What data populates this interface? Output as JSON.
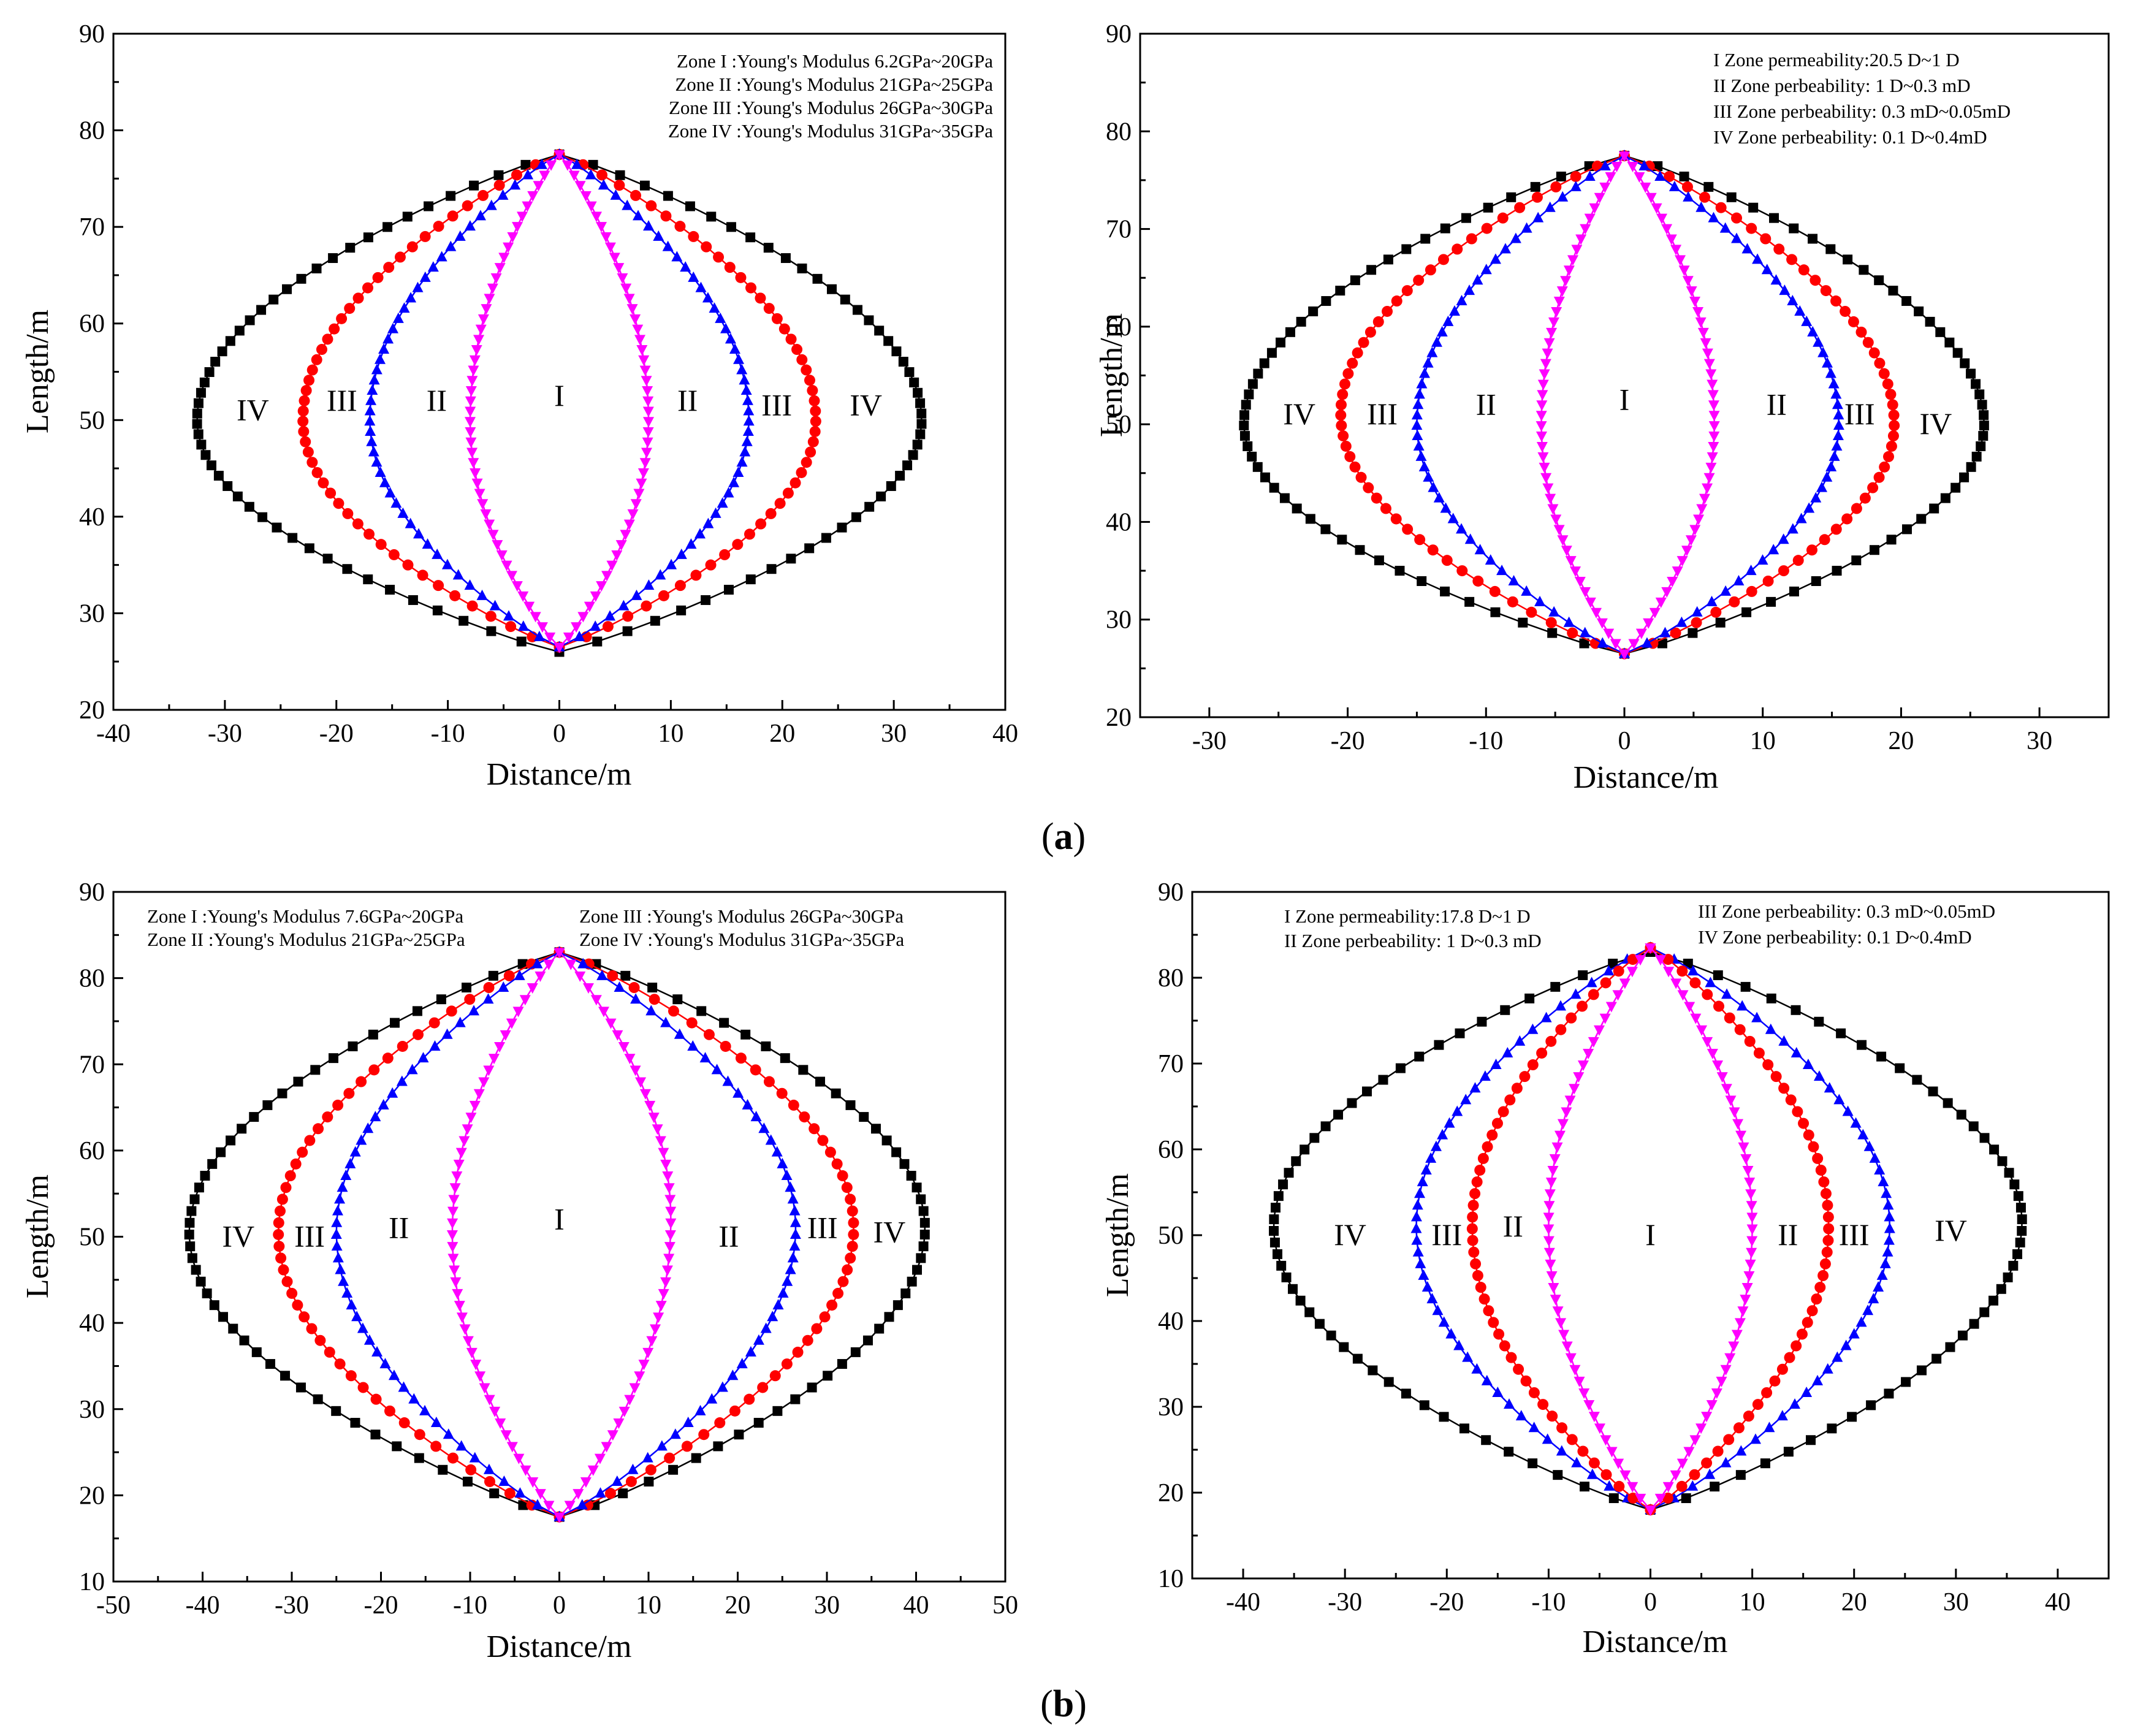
{
  "figure": {
    "captions": [
      {
        "open": "(",
        "letter": "a",
        "close": ")"
      },
      {
        "open": "(",
        "letter": "b",
        "close": ")"
      }
    ]
  },
  "chart_data": [
    {
      "type": "line",
      "xlabel": "Distance/m",
      "ylabel": "Length/m",
      "xlim": [
        -40,
        40
      ],
      "ylim": [
        20,
        90
      ],
      "xticks": [
        -40,
        -30,
        -20,
        -10,
        0,
        10,
        20,
        30,
        40
      ],
      "yticks": [
        20,
        30,
        40,
        50,
        60,
        70,
        80,
        90
      ],
      "annotations": [
        "Zone I :Young's Modulus 6.2GPa~20GPa",
        "Zone II :Young's Modulus 21GPa~25GPa",
        "Zone III :Young's Modulus 26GPa~30GPa",
        "Zone IV :Young's Modulus 31GPa~35GPa"
      ],
      "zone_labels": [
        {
          "text": "IV",
          "x": -27.5,
          "y": 51
        },
        {
          "text": "III",
          "x": -19.5,
          "y": 52
        },
        {
          "text": "II",
          "x": -11,
          "y": 52
        },
        {
          "text": "I",
          "x": 0,
          "y": 52.5
        },
        {
          "text": "II",
          "x": 11.5,
          "y": 52
        },
        {
          "text": "III",
          "x": 19.5,
          "y": 51.5
        },
        {
          "text": "IV",
          "x": 27.5,
          "y": 51.5
        }
      ],
      "series": [
        {
          "marker": "square",
          "color": "#000000",
          "apex_top": [
            0,
            77.5
          ],
          "apex_bottom": [
            0,
            26
          ],
          "left": [
            -32.5,
            50
          ],
          "right": [
            32.5,
            50
          ]
        },
        {
          "marker": "circle",
          "color": "#ff0000",
          "apex_top": [
            0,
            77.5
          ],
          "apex_bottom": [
            0,
            26.5
          ],
          "left": [
            -23,
            50
          ],
          "right": [
            23,
            50
          ]
        },
        {
          "marker": "triangle-up",
          "color": "#0000ff",
          "apex_top": [
            0,
            77.5
          ],
          "apex_bottom": [
            0,
            26.5
          ],
          "left": [
            -17,
            50
          ],
          "right": [
            17,
            50
          ]
        },
        {
          "marker": "triangle-down",
          "color": "#ff00ff",
          "apex_top": [
            0,
            77.5
          ],
          "apex_bottom": [
            0,
            26.5
          ],
          "left": [
            -8,
            50
          ],
          "right": [
            8,
            50
          ]
        }
      ]
    },
    {
      "type": "line",
      "xlabel": "Distance/m",
      "ylabel": "Length/m",
      "xlim": [
        -35,
        35
      ],
      "ylim": [
        20,
        90
      ],
      "xticks": [
        -30,
        -20,
        -10,
        0,
        10,
        20,
        30
      ],
      "yticks": [
        20,
        30,
        40,
        50,
        60,
        70,
        80,
        90
      ],
      "annotations": [
        "I Zone permeability:20.5 D~1 D",
        "II Zone perbeability: 1 D~0.3 mD",
        "III Zone perbeability: 0.3 mD~0.05mD",
        "IV Zone perbeability: 0.1 D~0.4mD"
      ],
      "zone_labels": [
        {
          "text": "IV",
          "x": -23.5,
          "y": 51
        },
        {
          "text": "III",
          "x": -17.5,
          "y": 51
        },
        {
          "text": "II",
          "x": -10,
          "y": 52
        },
        {
          "text": "I",
          "x": 0,
          "y": 52.5
        },
        {
          "text": "II",
          "x": 11,
          "y": 52
        },
        {
          "text": "III",
          "x": 17,
          "y": 51
        },
        {
          "text": "IV",
          "x": 22.5,
          "y": 50
        }
      ],
      "series": [
        {
          "marker": "square",
          "color": "#000000",
          "apex_top": [
            0,
            77.5
          ],
          "apex_bottom": [
            0,
            26.5
          ],
          "left": [
            -27.5,
            50
          ],
          "right": [
            26,
            50
          ]
        },
        {
          "marker": "circle",
          "color": "#ff0000",
          "apex_top": [
            0,
            77.5
          ],
          "apex_bottom": [
            0,
            26.5
          ],
          "left": [
            -20.5,
            51
          ],
          "right": [
            19.5,
            50
          ]
        },
        {
          "marker": "triangle-up",
          "color": "#0000ff",
          "apex_top": [
            0,
            77.5
          ],
          "apex_bottom": [
            0,
            26.5
          ],
          "left": [
            -15,
            50
          ],
          "right": [
            15.5,
            50
          ]
        },
        {
          "marker": "triangle-down",
          "color": "#ff00ff",
          "apex_top": [
            0,
            77.5
          ],
          "apex_bottom": [
            0,
            26.5
          ],
          "left": [
            -6,
            50
          ],
          "right": [
            6.5,
            50
          ]
        }
      ]
    },
    {
      "type": "line",
      "xlabel": "Distance/m",
      "ylabel": "Length/m",
      "xlim": [
        -50,
        50
      ],
      "ylim": [
        10,
        90
      ],
      "xticks": [
        -50,
        -40,
        -30,
        -20,
        -10,
        0,
        10,
        20,
        30,
        40,
        50
      ],
      "yticks": [
        10,
        20,
        30,
        40,
        50,
        60,
        70,
        80,
        90
      ],
      "annotations": [
        "Zone I :Young's Modulus 7.6GPa~20GPa",
        "Zone II :Young's Modulus 21GPa~25GPa",
        "Zone III :Young's Modulus 26GPa~30GPa",
        "Zone IV :Young's Modulus 31GPa~35GPa"
      ],
      "zone_labels": [
        {
          "text": "IV",
          "x": -36,
          "y": 50
        },
        {
          "text": "III",
          "x": -28,
          "y": 50
        },
        {
          "text": "II",
          "x": -18,
          "y": 51
        },
        {
          "text": "I",
          "x": 0,
          "y": 52
        },
        {
          "text": "II",
          "x": 19,
          "y": 50
        },
        {
          "text": "III",
          "x": 29.5,
          "y": 51
        },
        {
          "text": "IV",
          "x": 37,
          "y": 50.5
        }
      ],
      "series": [
        {
          "marker": "square",
          "color": "#000000",
          "apex_top": [
            0,
            83
          ],
          "apex_bottom": [
            0,
            17.5
          ],
          "left": [
            -41.5,
            50.5
          ],
          "right": [
            41,
            51
          ]
        },
        {
          "marker": "circle",
          "color": "#ff0000",
          "apex_top": [
            0,
            83
          ],
          "apex_bottom": [
            0,
            17.5
          ],
          "left": [
            -31.5,
            50.5
          ],
          "right": [
            33,
            51
          ]
        },
        {
          "marker": "triangle-up",
          "color": "#0000ff",
          "apex_top": [
            0,
            83
          ],
          "apex_bottom": [
            0,
            17.5
          ],
          "left": [
            -25,
            50.5
          ],
          "right": [
            26.5,
            51
          ]
        },
        {
          "marker": "triangle-down",
          "color": "#ff00ff",
          "apex_top": [
            0,
            83
          ],
          "apex_bottom": [
            0,
            17.5
          ],
          "left": [
            -12,
            50.5
          ],
          "right": [
            12.5,
            52
          ]
        }
      ]
    },
    {
      "type": "line",
      "xlabel": "Distance/m",
      "ylabel": "Length/m",
      "xlim": [
        -45,
        45
      ],
      "ylim": [
        10,
        90
      ],
      "xticks": [
        -40,
        -30,
        -20,
        -10,
        0,
        10,
        20,
        30,
        40
      ],
      "yticks": [
        10,
        20,
        30,
        40,
        50,
        60,
        70,
        80,
        90
      ],
      "annotations": [
        "I Zone permeability:17.8 D~1 D",
        "II Zone perbeability: 1 D~0.3 mD",
        "III Zone perbeability: 0.3 mD~0.05mD",
        "IV Zone perbeability: 0.1 D~0.4mD"
      ],
      "zone_labels": [
        {
          "text": "IV",
          "x": -29.5,
          "y": 50
        },
        {
          "text": "III",
          "x": -20,
          "y": 50
        },
        {
          "text": "II",
          "x": -13.5,
          "y": 51
        },
        {
          "text": "I",
          "x": 0,
          "y": 50
        },
        {
          "text": "II",
          "x": 13.5,
          "y": 50
        },
        {
          "text": "III",
          "x": 20,
          "y": 50
        },
        {
          "text": "IV",
          "x": 29.5,
          "y": 50.5
        }
      ],
      "series": [
        {
          "marker": "square",
          "color": "#000000",
          "apex_top": [
            0,
            83
          ],
          "apex_bottom": [
            0,
            18
          ],
          "left": [
            -37,
            51
          ],
          "right": [
            36.5,
            51.5
          ]
        },
        {
          "marker": "triangle-up",
          "color": "#0000ff",
          "apex_top": [
            0,
            83.5
          ],
          "apex_bottom": [
            0,
            18
          ],
          "left": [
            -23,
            51
          ],
          "right": [
            23.5,
            51
          ]
        },
        {
          "marker": "circle",
          "color": "#ff0000",
          "apex_top": [
            0,
            83.5
          ],
          "apex_bottom": [
            0,
            18
          ],
          "left": [
            -17.5,
            51
          ],
          "right": [
            17.5,
            51
          ]
        },
        {
          "marker": "triangle-down",
          "color": "#ff00ff",
          "apex_top": [
            0,
            83.5
          ],
          "apex_bottom": [
            0,
            18
          ],
          "left": [
            -10,
            51
          ],
          "right": [
            10,
            51
          ]
        }
      ]
    }
  ]
}
